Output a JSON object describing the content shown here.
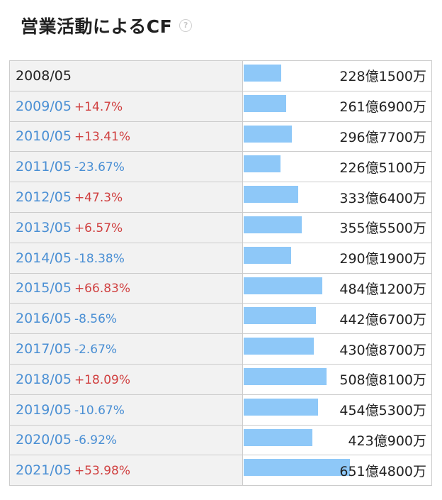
{
  "title": "営業活動によるCF",
  "help_icon": "?",
  "chart_data": {
    "type": "bar",
    "orientation": "horizontal",
    "title": "営業活動によるCF",
    "unit": "億円",
    "bar_color": "#8ec8f8",
    "positive_change_color": "#d04040",
    "negative_change_color": "#4a8fd4",
    "max_value": 651.48,
    "rows": [
      {
        "year": "2008/05",
        "change": "",
        "amount": "228億1500万",
        "value": 228.15
      },
      {
        "year": "2009/05",
        "change": "+14.7%",
        "amount": "261億6900万",
        "value": 261.69
      },
      {
        "year": "2010/05",
        "change": "+13.41%",
        "amount": "296億7700万",
        "value": 296.77
      },
      {
        "year": "2011/05",
        "change": "-23.67%",
        "amount": "226億5100万",
        "value": 226.51
      },
      {
        "year": "2012/05",
        "change": "+47.3%",
        "amount": "333億6400万",
        "value": 333.64
      },
      {
        "year": "2013/05",
        "change": "+6.57%",
        "amount": "355億5500万",
        "value": 355.55
      },
      {
        "year": "2014/05",
        "change": "-18.38%",
        "amount": "290億1900万",
        "value": 290.19
      },
      {
        "year": "2015/05",
        "change": "+66.83%",
        "amount": "484億1200万",
        "value": 484.12
      },
      {
        "year": "2016/05",
        "change": "-8.56%",
        "amount": "442億6700万",
        "value": 442.67
      },
      {
        "year": "2017/05",
        "change": "-2.67%",
        "amount": "430億8700万",
        "value": 430.87
      },
      {
        "year": "2018/05",
        "change": "+18.09%",
        "amount": "508億8100万",
        "value": 508.81
      },
      {
        "year": "2019/05",
        "change": "-10.67%",
        "amount": "454億5300万",
        "value": 454.53
      },
      {
        "year": "2020/05",
        "change": "-6.92%",
        "amount": "423億900万",
        "value": 423.09
      },
      {
        "year": "2021/05",
        "change": "+53.98%",
        "amount": "651億4800万",
        "value": 651.48
      }
    ]
  }
}
